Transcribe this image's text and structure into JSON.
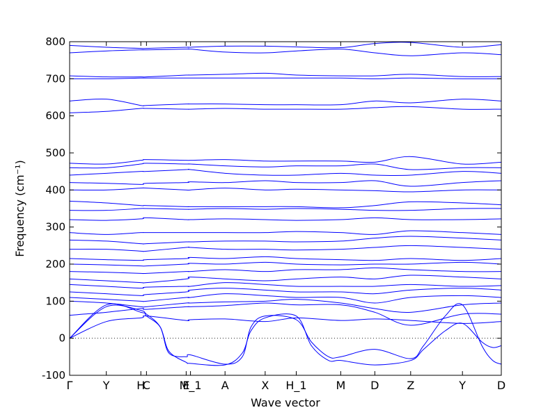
{
  "chart_data": {
    "type": "line",
    "xlabel": "Wave vector",
    "ylabel": "Frequency (cm⁻¹)",
    "ylim": [
      -100,
      800
    ],
    "yticks": [
      -100,
      0,
      100,
      200,
      300,
      400,
      500,
      600,
      700,
      800
    ],
    "xlim": [
      0,
      1
    ],
    "path_labels": [
      {
        "label": "Γ",
        "x": 0.0
      },
      {
        "label": "Y",
        "x": 0.085
      },
      {
        "label": "H",
        "x": 0.165
      },
      {
        "label": "C",
        "x": 0.178
      },
      {
        "label": "E",
        "x": 0.27
      },
      {
        "label": "M_1",
        "x": 0.28
      },
      {
        "label": "A",
        "x": 0.36
      },
      {
        "label": "X",
        "x": 0.453
      },
      {
        "label": "H_1",
        "x": 0.525
      },
      {
        "label": "M",
        "x": 0.628
      },
      {
        "label": "D",
        "x": 0.707
      },
      {
        "label": "Z",
        "x": 0.79
      },
      {
        "label": "Y",
        "x": 0.91
      },
      {
        "label": "D",
        "x": 1.0
      }
    ],
    "zero_line": {
      "y": 0,
      "style": "dotted"
    },
    "series_color": "#0000ff",
    "series": [
      {
        "x": [
          0,
          0.085,
          0.165,
          0.178,
          0.27,
          0.28,
          0.36,
          0.453,
          0.525,
          0.628,
          0.707,
          0.79,
          0.91,
          1
        ],
        "y": [
          0,
          45,
          55,
          60,
          48,
          50,
          52,
          45,
          55,
          48,
          52,
          48,
          40,
          45
        ]
      },
      {
        "x": [
          0,
          0.085,
          0.165,
          0.178,
          0.21,
          0.23,
          0.27,
          0.28,
          0.36,
          0.4,
          0.42,
          0.453,
          0.525,
          0.56,
          0.6,
          0.628,
          0.707,
          0.79,
          0.82,
          0.87,
          0.91,
          0.955,
          0.98,
          1
        ],
        "y": [
          0,
          85,
          75,
          60,
          30,
          -35,
          -65,
          -68,
          -72,
          -40,
          20,
          55,
          60,
          -20,
          -60,
          -60,
          -72,
          -60,
          -30,
          20,
          40,
          -10,
          -25,
          -20
        ]
      },
      {
        "x": [
          0,
          0.085,
          0.165,
          0.178,
          0.21,
          0.23,
          0.27,
          0.28,
          0.36,
          0.4,
          0.42,
          0.453,
          0.525,
          0.56,
          0.6,
          0.628,
          0.707,
          0.79,
          0.82,
          0.87,
          0.91,
          0.955,
          0.98,
          1
        ],
        "y": [
          0,
          90,
          70,
          65,
          30,
          -40,
          -50,
          -45,
          -70,
          -50,
          30,
          60,
          50,
          -10,
          -50,
          -50,
          -30,
          -55,
          -20,
          60,
          90,
          -20,
          -60,
          -70
        ]
      },
      {
        "x": [
          0,
          0.085,
          0.165,
          0.178,
          0.27,
          0.28,
          0.36,
          0.453,
          0.525,
          0.628,
          0.707,
          0.79,
          0.91,
          1
        ],
        "y": [
          62,
          70,
          80,
          78,
          85,
          85,
          88,
          95,
          90,
          90,
          70,
          35,
          65,
          65
        ]
      },
      {
        "x": [
          0,
          0.085,
          0.165,
          0.178,
          0.27,
          0.28,
          0.36,
          0.453,
          0.525,
          0.628,
          0.707,
          0.79,
          0.91,
          1
        ],
        "y": [
          100,
          95,
          85,
          85,
          95,
          95,
          98,
          100,
          105,
          95,
          80,
          70,
          90,
          95
        ]
      },
      {
        "x": [
          0,
          0.085,
          0.165,
          0.178,
          0.27,
          0.28,
          0.36,
          0.453,
          0.525,
          0.628,
          0.707,
          0.79,
          0.91,
          1
        ],
        "y": [
          110,
          105,
          100,
          100,
          110,
          110,
          120,
          115,
          110,
          110,
          95,
          110,
          115,
          110
        ]
      },
      {
        "x": [
          0,
          0.085,
          0.165,
          0.178,
          0.27,
          0.28,
          0.36,
          0.453,
          0.525,
          0.628,
          0.707,
          0.79,
          0.91,
          1
        ],
        "y": [
          125,
          120,
          115,
          118,
          125,
          130,
          135,
          130,
          125,
          125,
          120,
          130,
          135,
          130
        ]
      },
      {
        "x": [
          0,
          0.085,
          0.165,
          0.178,
          0.27,
          0.28,
          0.36,
          0.453,
          0.525,
          0.628,
          0.707,
          0.79,
          0.91,
          1
        ],
        "y": [
          145,
          140,
          135,
          138,
          140,
          140,
          150,
          145,
          140,
          140,
          140,
          145,
          140,
          142
        ]
      },
      {
        "x": [
          0,
          0.085,
          0.165,
          0.178,
          0.27,
          0.28,
          0.36,
          0.453,
          0.525,
          0.628,
          0.707,
          0.79,
          0.91,
          1
        ],
        "y": [
          160,
          155,
          150,
          150,
          160,
          165,
          160,
          155,
          160,
          165,
          160,
          170,
          165,
          160
        ]
      },
      {
        "x": [
          0,
          0.085,
          0.165,
          0.178,
          0.27,
          0.28,
          0.36,
          0.453,
          0.525,
          0.628,
          0.707,
          0.79,
          0.91,
          1
        ],
        "y": [
          180,
          178,
          175,
          175,
          180,
          180,
          185,
          180,
          185,
          185,
          190,
          185,
          180,
          180
        ]
      },
      {
        "x": [
          0,
          0.085,
          0.165,
          0.178,
          0.27,
          0.28,
          0.36,
          0.453,
          0.525,
          0.628,
          0.707,
          0.79,
          0.91,
          1
        ],
        "y": [
          200,
          198,
          195,
          195,
          200,
          202,
          200,
          205,
          200,
          198,
          200,
          200,
          205,
          200
        ]
      },
      {
        "x": [
          0,
          0.085,
          0.165,
          0.178,
          0.27,
          0.28,
          0.36,
          0.453,
          0.525,
          0.628,
          0.707,
          0.79,
          0.91,
          1
        ],
        "y": [
          215,
          212,
          210,
          212,
          215,
          218,
          215,
          220,
          215,
          212,
          210,
          215,
          210,
          215
        ]
      },
      {
        "x": [
          0,
          0.085,
          0.165,
          0.178,
          0.27,
          0.28,
          0.36,
          0.453,
          0.525,
          0.628,
          0.707,
          0.79,
          0.91,
          1
        ],
        "y": [
          240,
          240,
          235,
          235,
          245,
          245,
          240,
          240,
          238,
          240,
          245,
          250,
          245,
          240
        ]
      },
      {
        "x": [
          0,
          0.085,
          0.165,
          0.178,
          0.27,
          0.28,
          0.36,
          0.453,
          0.525,
          0.628,
          0.707,
          0.79,
          0.91,
          1
        ],
        "y": [
          265,
          262,
          255,
          255,
          260,
          260,
          262,
          262,
          260,
          262,
          270,
          275,
          270,
          265
        ]
      },
      {
        "x": [
          0,
          0.085,
          0.165,
          0.178,
          0.27,
          0.28,
          0.36,
          0.453,
          0.525,
          0.628,
          0.707,
          0.79,
          0.91,
          1
        ],
        "y": [
          285,
          280,
          285,
          285,
          285,
          285,
          285,
          285,
          288,
          285,
          280,
          290,
          285,
          280
        ]
      },
      {
        "x": [
          0,
          0.085,
          0.165,
          0.178,
          0.27,
          0.28,
          0.36,
          0.453,
          0.525,
          0.628,
          0.707,
          0.79,
          0.91,
          1
        ],
        "y": [
          320,
          318,
          322,
          325,
          320,
          320,
          322,
          320,
          318,
          320,
          325,
          320,
          320,
          322
        ]
      },
      {
        "x": [
          0,
          0.085,
          0.165,
          0.178,
          0.27,
          0.28,
          0.36,
          0.453,
          0.525,
          0.628,
          0.707,
          0.79,
          0.91,
          1
        ],
        "y": [
          345,
          345,
          350,
          350,
          348,
          348,
          350,
          348,
          350,
          348,
          345,
          345,
          350,
          350
        ]
      },
      {
        "x": [
          0,
          0.085,
          0.165,
          0.178,
          0.27,
          0.28,
          0.36,
          0.453,
          0.525,
          0.628,
          0.707,
          0.79,
          0.91,
          1
        ],
        "y": [
          370,
          365,
          358,
          358,
          355,
          355,
          355,
          355,
          355,
          352,
          358,
          368,
          365,
          360
        ]
      },
      {
        "x": [
          0,
          0.085,
          0.165,
          0.178,
          0.27,
          0.28,
          0.36,
          0.453,
          0.525,
          0.628,
          0.707,
          0.79,
          0.91,
          1
        ],
        "y": [
          400,
          400,
          405,
          405,
          400,
          400,
          405,
          400,
          402,
          400,
          398,
          395,
          400,
          400
        ]
      },
      {
        "x": [
          0,
          0.085,
          0.165,
          0.178,
          0.27,
          0.28,
          0.36,
          0.453,
          0.525,
          0.628,
          0.707,
          0.79,
          0.91,
          1
        ],
        "y": [
          420,
          418,
          415,
          418,
          420,
          422,
          420,
          425,
          420,
          420,
          425,
          410,
          420,
          425
        ]
      },
      {
        "x": [
          0,
          0.085,
          0.165,
          0.178,
          0.27,
          0.28,
          0.36,
          0.453,
          0.525,
          0.628,
          0.707,
          0.79,
          0.91,
          1
        ],
        "y": [
          440,
          445,
          450,
          450,
          455,
          455,
          445,
          440,
          440,
          445,
          440,
          440,
          450,
          445
        ]
      },
      {
        "x": [
          0,
          0.085,
          0.165,
          0.178,
          0.27,
          0.28,
          0.36,
          0.453,
          0.525,
          0.628,
          0.707,
          0.79,
          0.91,
          1
        ],
        "y": [
          460,
          460,
          470,
          472,
          470,
          470,
          465,
          462,
          465,
          465,
          470,
          455,
          460,
          460
        ]
      },
      {
        "x": [
          0,
          0.085,
          0.165,
          0.178,
          0.27,
          0.28,
          0.36,
          0.453,
          0.525,
          0.628,
          0.707,
          0.79,
          0.91,
          1
        ],
        "y": [
          472,
          470,
          480,
          482,
          480,
          480,
          482,
          478,
          478,
          478,
          475,
          490,
          470,
          475
        ]
      },
      {
        "x": [
          0,
          0.085,
          0.165,
          0.178,
          0.27,
          0.28,
          0.36,
          0.453,
          0.525,
          0.628,
          0.707,
          0.79,
          0.91,
          1
        ],
        "y": [
          608,
          612,
          620,
          620,
          618,
          618,
          620,
          618,
          618,
          618,
          622,
          625,
          618,
          618
        ]
      },
      {
        "x": [
          0,
          0.085,
          0.165,
          0.178,
          0.27,
          0.28,
          0.36,
          0.453,
          0.525,
          0.628,
          0.707,
          0.79,
          0.91,
          1
        ],
        "y": [
          640,
          645,
          628,
          628,
          632,
          632,
          632,
          630,
          630,
          630,
          640,
          635,
          645,
          640
        ]
      },
      {
        "x": [
          0,
          0.085,
          0.165,
          0.178,
          0.27,
          0.28,
          0.36,
          0.453,
          0.525,
          0.628,
          0.707,
          0.79,
          0.91,
          1
        ],
        "y": [
          700,
          700,
          702,
          702,
          702,
          702,
          702,
          702,
          702,
          702,
          700,
          702,
          700,
          700
        ]
      },
      {
        "x": [
          0,
          0.085,
          0.165,
          0.178,
          0.27,
          0.28,
          0.36,
          0.453,
          0.525,
          0.628,
          0.707,
          0.79,
          0.91,
          1
        ],
        "y": [
          708,
          705,
          705,
          705,
          710,
          710,
          712,
          715,
          710,
          708,
          708,
          712,
          706,
          706
        ]
      },
      {
        "x": [
          0,
          0.085,
          0.165,
          0.178,
          0.27,
          0.28,
          0.36,
          0.453,
          0.525,
          0.628,
          0.707,
          0.79,
          0.91,
          1
        ],
        "y": [
          770,
          775,
          778,
          778,
          780,
          780,
          772,
          770,
          775,
          780,
          770,
          762,
          770,
          765
        ]
      },
      {
        "x": [
          0,
          0.085,
          0.165,
          0.178,
          0.27,
          0.28,
          0.36,
          0.453,
          0.525,
          0.628,
          0.707,
          0.79,
          0.91,
          1
        ],
        "y": [
          790,
          785,
          782,
          782,
          785,
          785,
          788,
          788,
          786,
          784,
          795,
          798,
          785,
          792
        ]
      }
    ]
  }
}
